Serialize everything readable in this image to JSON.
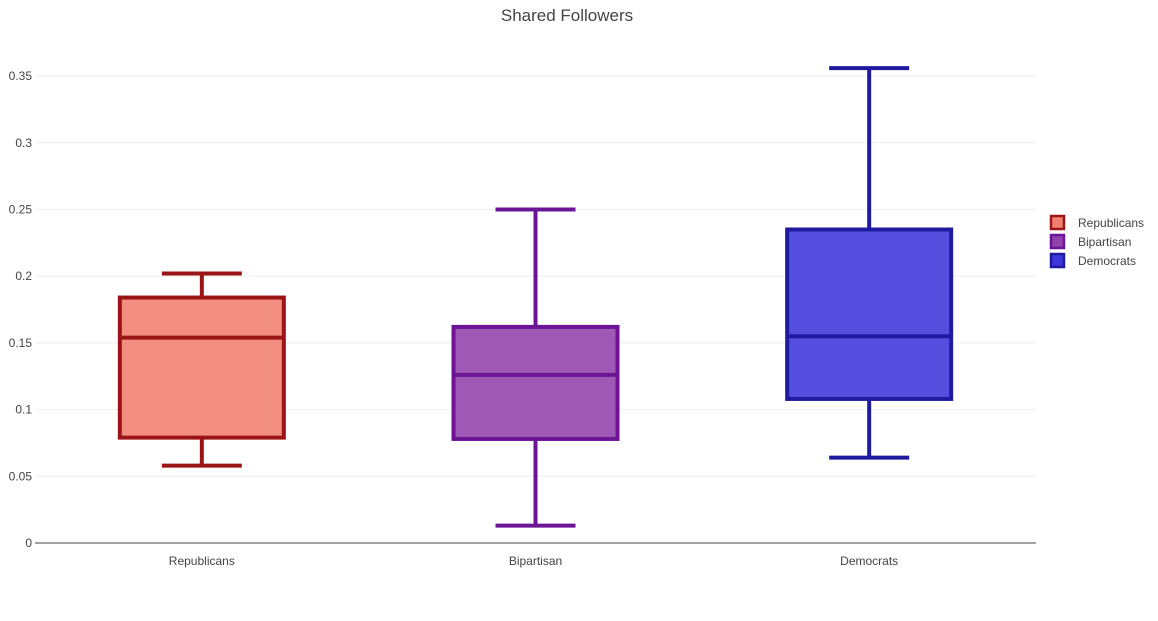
{
  "chart_data": {
    "type": "box",
    "title": "Shared Followers",
    "xlabel": "",
    "ylabel": "",
    "ylim": [
      0,
      0.37
    ],
    "yticks": [
      0,
      0.05,
      0.1,
      0.15,
      0.2,
      0.25,
      0.3,
      0.35
    ],
    "ytick_labels": [
      "0",
      "0.05",
      "0.1",
      "0.15",
      "0.2",
      "0.25",
      "0.3",
      "0.35"
    ],
    "grid": true,
    "legend_position": "right",
    "categories": [
      "Republicans",
      "Bipartisan",
      "Democrats"
    ],
    "series": [
      {
        "name": "Republicans",
        "category": "Republicans",
        "min": 0.058,
        "q1": 0.079,
        "median": 0.154,
        "q3": 0.184,
        "max": 0.202,
        "fill": "#f08070",
        "line": "#9b1416"
      },
      {
        "name": "Bipartisan",
        "category": "Bipartisan",
        "min": 0.013,
        "q1": 0.078,
        "median": 0.126,
        "q3": 0.162,
        "max": 0.25,
        "fill": "#9142ab",
        "line": "#6b1596"
      },
      {
        "name": "Democrats",
        "category": "Democrats",
        "min": 0.064,
        "q1": 0.108,
        "median": 0.155,
        "q3": 0.235,
        "max": 0.356,
        "fill": "#3f36d9",
        "line": "#1e1ba0"
      }
    ]
  }
}
